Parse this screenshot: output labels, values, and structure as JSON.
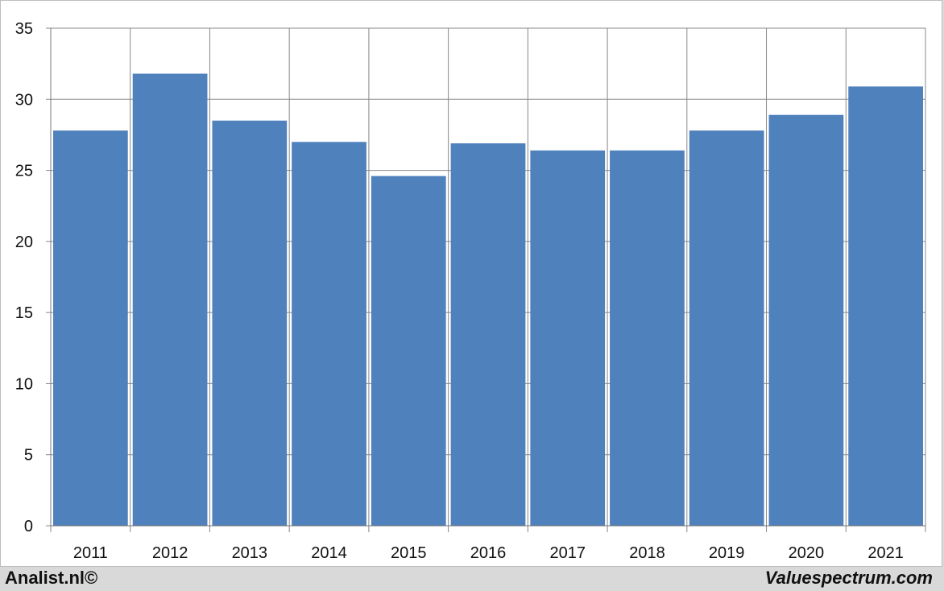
{
  "chart_data": {
    "type": "bar",
    "categories": [
      "2011",
      "2012",
      "2013",
      "2014",
      "2015",
      "2016",
      "2017",
      "2018",
      "2019",
      "2020",
      "2021"
    ],
    "values": [
      27.8,
      31.8,
      28.5,
      27.0,
      24.6,
      26.9,
      26.4,
      26.4,
      27.8,
      28.9,
      30.9
    ],
    "ylim": [
      0,
      35
    ],
    "yticks": [
      0,
      5,
      10,
      15,
      20,
      25,
      30,
      35
    ],
    "grid": true,
    "bar_color": "#4f81bd",
    "grid_color": "#888888"
  },
  "footer": {
    "left_text": "Analist.nl©",
    "right_text": "Valuespectrum.com"
  }
}
